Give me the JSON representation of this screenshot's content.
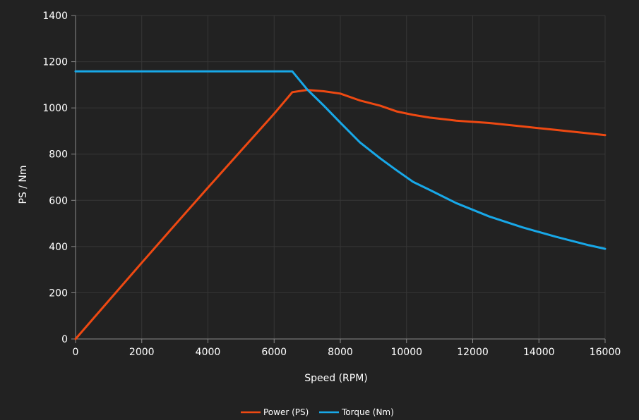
{
  "chart_data": {
    "type": "line",
    "xlabel": "Speed (RPM)",
    "ylabel": "PS / Nm",
    "xlim": [
      0,
      16000
    ],
    "ylim": [
      0,
      1400
    ],
    "xticks": [
      "0",
      "2000",
      "4000",
      "6000",
      "8000",
      "10000",
      "12000",
      "14000",
      "16000"
    ],
    "yticks": [
      "0",
      "200",
      "400",
      "600",
      "800",
      "1000",
      "1200",
      "1400"
    ],
    "grid": true,
    "legend_position": "bottom-center",
    "series": [
      {
        "name": "Power (PS)",
        "color": "#ee4912",
        "points": [
          [
            0,
            0
          ],
          [
            1000,
            165
          ],
          [
            2000,
            330
          ],
          [
            3000,
            493
          ],
          [
            4000,
            655
          ],
          [
            5000,
            815
          ],
          [
            6000,
            975
          ],
          [
            6550,
            1068
          ],
          [
            7000,
            1078
          ],
          [
            7500,
            1072
          ],
          [
            8000,
            1062
          ],
          [
            8600,
            1032
          ],
          [
            9200,
            1010
          ],
          [
            9700,
            985
          ],
          [
            10200,
            970
          ],
          [
            10700,
            958
          ],
          [
            11500,
            945
          ],
          [
            12500,
            935
          ],
          [
            13500,
            920
          ],
          [
            14500,
            905
          ],
          [
            15500,
            890
          ],
          [
            16000,
            882
          ]
        ]
      },
      {
        "name": "Torque (Nm)",
        "color": "#18a8e8",
        "points": [
          [
            0,
            1158
          ],
          [
            6550,
            1158
          ],
          [
            7000,
            1080
          ],
          [
            7500,
            1010
          ],
          [
            8000,
            936
          ],
          [
            8600,
            850
          ],
          [
            9200,
            782
          ],
          [
            9700,
            730
          ],
          [
            10200,
            680
          ],
          [
            10700,
            645
          ],
          [
            11500,
            588
          ],
          [
            12500,
            530
          ],
          [
            13500,
            483
          ],
          [
            14500,
            443
          ],
          [
            15500,
            406
          ],
          [
            16000,
            390
          ]
        ]
      }
    ]
  }
}
